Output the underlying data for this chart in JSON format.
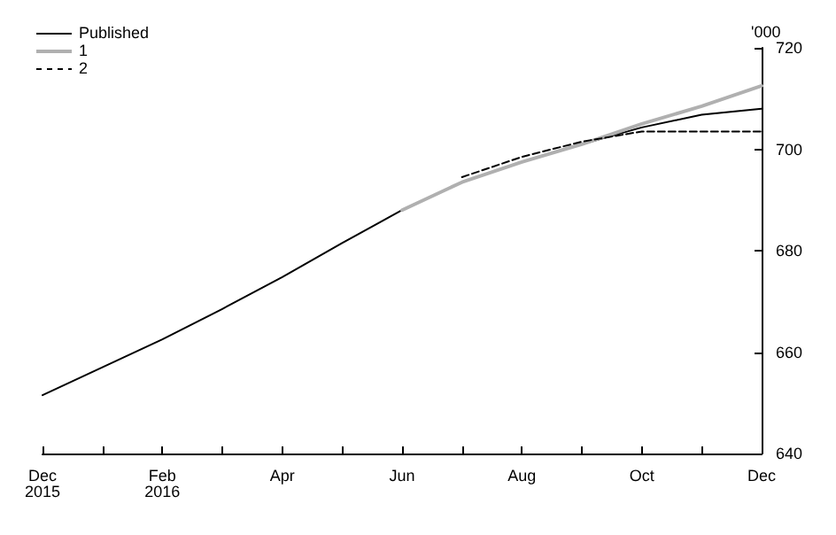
{
  "chart_data": {
    "type": "line",
    "ylabel": "'000",
    "categories": [
      "Dec\n2015",
      null,
      "Feb\n2016",
      null,
      "Apr",
      null,
      "Jun",
      null,
      "Aug",
      null,
      "Oct",
      null,
      "Dec"
    ],
    "series": [
      {
        "name": "Published",
        "color": "#000000",
        "line_style": "solid",
        "values": [
          651.5,
          657,
          662.5,
          668.5,
          674.8,
          681.5,
          688,
          693.5,
          697.5,
          701,
          704.3,
          706.8,
          708
        ]
      },
      {
        "name": "1",
        "color": "#b0b0b0",
        "line_style": "solid",
        "values": [
          null,
          null,
          null,
          null,
          null,
          null,
          688,
          693.5,
          697.5,
          701,
          705,
          708.5,
          712.5
        ]
      },
      {
        "name": "2",
        "color": "#000000",
        "line_style": "dashed",
        "values": [
          null,
          null,
          null,
          null,
          null,
          null,
          null,
          694.5,
          698.5,
          701.5,
          703.5,
          703.5,
          703.5
        ]
      }
    ],
    "ylim": [
      640,
      720
    ],
    "yticks": [
      640,
      660,
      680,
      700,
      720
    ],
    "grid": false,
    "legend": "top left",
    "marker": "none"
  }
}
